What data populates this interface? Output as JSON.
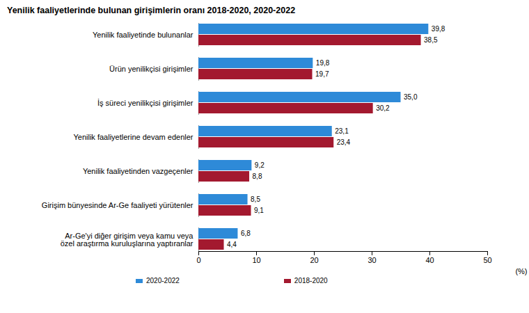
{
  "chart_data": {
    "type": "bar",
    "orientation": "horizontal",
    "title": "Yenilik faaliyetlerinde bulunan girişimlerin oranı 2018-2020, 2020-2022",
    "x_label": "(%)",
    "categories": [
      "Yenilik faaliyetinde bulunanlar",
      "Ürün yenilikçisi girişimler",
      "İş süreci yenilikçisi girişimler",
      "Yenilik faaliyetlerine devam edenler",
      "Yenilik faaliyetinden vazgeçenler",
      "Girişim bünyesinde Ar-Ge faaliyeti yürütenler",
      "Ar-Ge'yi diğer girişim veya kamu veya\nözel araştırma kuruluşlarına yaptıranlar"
    ],
    "series": [
      {
        "name": "2020-2022",
        "color": "#2e8ad8",
        "values": [
          39.8,
          19.8,
          35.0,
          23.1,
          9.2,
          8.5,
          6.8
        ],
        "value_labels": [
          "39,8",
          "19,8",
          "35,0",
          "23,1",
          "9,2",
          "8,5",
          "6,8"
        ]
      },
      {
        "name": "2018-2020",
        "color": "#a3192f",
        "values": [
          38.5,
          19.7,
          30.2,
          23.4,
          8.8,
          9.1,
          4.4
        ],
        "value_labels": [
          "38,5",
          "19,7",
          "30,2",
          "23,4",
          "8,8",
          "9,1",
          "4,4"
        ]
      }
    ],
    "xlim": [
      0,
      50
    ],
    "xticks": [
      0,
      10,
      20,
      30,
      40,
      50
    ],
    "data_labels": true,
    "grid": false,
    "legend": "bottom"
  }
}
